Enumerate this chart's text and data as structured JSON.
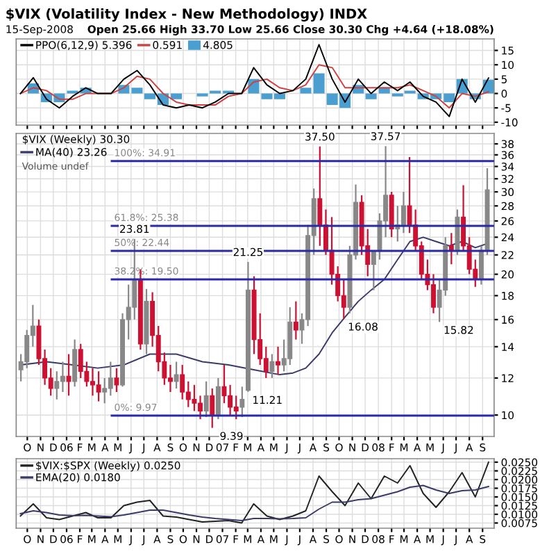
{
  "chart_data": [
    {
      "type": "line",
      "title": "$VIX (Volatility Index - New Methodology) INDX",
      "annotations": [
        "15-Sep-2008",
        "Open 25.66 High 33.70 Low 25.66 Close 30.30 Chg +4.64 (+18.08%)"
      ],
      "x": [
        "2005-09-15",
        "2005-10-15",
        "2005-11-15",
        "2005-12-15",
        "2006-01-15",
        "2006-02-15",
        "2006-03-15",
        "2006-04-15",
        "2006-05-15",
        "2006-06-15",
        "2006-07-15",
        "2006-08-15",
        "2006-09-15",
        "2006-10-15",
        "2006-11-15",
        "2006-12-15",
        "2007-01-15",
        "2007-02-15",
        "2007-03-15",
        "2007-04-15",
        "2007-05-15",
        "2007-06-15",
        "2007-07-15",
        "2007-08-15",
        "2007-09-15",
        "2007-10-15",
        "2007-11-15",
        "2007-12-15",
        "2008-01-15",
        "2008-02-15",
        "2008-03-15",
        "2008-04-15",
        "2008-05-15",
        "2008-06-15",
        "2008-07-15",
        "2008-08-15",
        "2008-09-15"
      ],
      "series": [
        {
          "name": "4.805",
          "type": "bar",
          "color": "#4a9fd0",
          "values": [
            0,
            3.5,
            -3,
            -3,
            1,
            2,
            0,
            0,
            3,
            2,
            -2,
            -4,
            -2,
            0,
            -1,
            1,
            1,
            0,
            5,
            -2,
            -2,
            0,
            2,
            7,
            -4,
            -5,
            3,
            -2,
            2,
            -1,
            1,
            -2,
            -2,
            -3,
            5,
            -2,
            4.8
          ]
        },
        {
          "name": "0.591",
          "type": "line",
          "color": "#d04040",
          "values": [
            0,
            2,
            1,
            -2,
            -2,
            0,
            0,
            0,
            2,
            6,
            5,
            0,
            -3,
            -4,
            -4,
            -4,
            -1,
            0,
            4,
            5,
            2,
            1,
            3,
            10,
            9,
            2,
            2,
            2,
            2,
            2,
            3,
            1,
            -1,
            -5,
            0,
            -1,
            0.6
          ]
        },
        {
          "name": "PPO(6,12,9) 5.396",
          "type": "line",
          "color": "#000000",
          "values": [
            0,
            5.5,
            -2,
            -5,
            -1,
            2,
            0,
            0,
            5,
            8,
            3,
            -4,
            -5,
            -4,
            -5,
            -3,
            0,
            0,
            9,
            3,
            0,
            1,
            5,
            17,
            5,
            -3,
            5,
            0,
            4,
            1,
            4,
            -1,
            -3,
            -8,
            5,
            -3,
            5.4
          ]
        }
      ],
      "xlim": [
        "2005-09-05",
        "2008-09-28"
      ],
      "xticks": [
        {
          "value": "2005-10-01",
          "label": null
        },
        {
          "value": "2005-11-01",
          "label": null
        },
        {
          "value": "2005-12-01",
          "label": null
        },
        {
          "value": "2006-01-01",
          "label": null
        },
        {
          "value": "2006-02-01",
          "label": null
        },
        {
          "value": "2006-03-01",
          "label": null
        },
        {
          "value": "2006-04-01",
          "label": null
        },
        {
          "value": "2006-05-01",
          "label": null
        },
        {
          "value": "2006-06-01",
          "label": null
        },
        {
          "value": "2006-07-01",
          "label": null
        },
        {
          "value": "2006-08-01",
          "label": null
        },
        {
          "value": "2006-09-01",
          "label": null
        },
        {
          "value": "2006-10-01",
          "label": null
        },
        {
          "value": "2006-11-01",
          "label": null
        },
        {
          "value": "2006-12-01",
          "label": null
        },
        {
          "value": "2007-01-01",
          "label": null
        },
        {
          "value": "2007-02-01",
          "label": null
        },
        {
          "value": "2007-03-01",
          "label": null
        },
        {
          "value": "2007-04-01",
          "label": null
        },
        {
          "value": "2007-05-01",
          "label": null
        },
        {
          "value": "2007-06-01",
          "label": null
        },
        {
          "value": "2007-07-01",
          "label": null
        },
        {
          "value": "2007-08-01",
          "label": null
        },
        {
          "value": "2007-09-01",
          "label": null
        },
        {
          "value": "2007-10-01",
          "label": null
        },
        {
          "value": "2007-11-01",
          "label": null
        },
        {
          "value": "2007-12-01",
          "label": null
        },
        {
          "value": "2008-01-01",
          "label": null
        },
        {
          "value": "2008-02-01",
          "label": null
        },
        {
          "value": "2008-03-01",
          "label": null
        },
        {
          "value": "2008-04-01",
          "label": null
        },
        {
          "value": "2008-05-01",
          "label": null
        },
        {
          "value": "2008-06-01",
          "label": null
        },
        {
          "value": "2008-07-01",
          "label": null
        },
        {
          "value": "2008-08-01",
          "label": null
        },
        {
          "value": "2008-09-01",
          "label": null
        }
      ],
      "ylim": [
        -11,
        19
      ],
      "yticks": [
        -10,
        -5,
        0,
        5,
        10,
        15
      ],
      "grid": true,
      "legend": "top left",
      "tick_labels": "y"
    },
    {
      "type": "candlestick",
      "title": "$VIX (Weekly) 30.30",
      "log": true,
      "annotations": [
        "Volume undef",
        {
          "text": "23.81",
          "x": "2006-06-09",
          "y": 23.81
        },
        {
          "text": "21.25",
          "x": "2007-03-02",
          "y": 21.25
        },
        {
          "text": "11.21",
          "x": "2007-03-02",
          "y": 11.21
        },
        {
          "text": "9.39",
          "x": "2006-12-08",
          "y": 9.39
        },
        {
          "text": "37.50",
          "x": "2007-08-17",
          "y": 37.5
        },
        {
          "text": "16.08",
          "x": "2007-10-12",
          "y": 16.08
        },
        {
          "text": "37.57",
          "x": "2008-01-18",
          "y": 37.57
        },
        {
          "text": "15.82",
          "x": "2008-05-23",
          "y": 15.82
        }
      ],
      "x": [
        "2005-09-16",
        "2005-09-30",
        "2005-10-14",
        "2005-10-28",
        "2005-11-11",
        "2005-11-25",
        "2005-12-09",
        "2005-12-23",
        "2006-01-06",
        "2006-01-20",
        "2006-02-03",
        "2006-02-17",
        "2006-03-03",
        "2006-03-17",
        "2006-03-31",
        "2006-04-14",
        "2006-04-28",
        "2006-05-12",
        "2006-05-26",
        "2006-06-09",
        "2006-06-23",
        "2006-07-07",
        "2006-07-21",
        "2006-08-04",
        "2006-08-18",
        "2006-09-01",
        "2006-09-15",
        "2006-09-29",
        "2006-10-13",
        "2006-10-27",
        "2006-11-10",
        "2006-11-24",
        "2006-12-08",
        "2006-12-22",
        "2007-01-05",
        "2007-01-19",
        "2007-02-02",
        "2007-02-16",
        "2007-03-02",
        "2007-03-16",
        "2007-03-30",
        "2007-04-13",
        "2007-04-27",
        "2007-05-11",
        "2007-05-25",
        "2007-06-08",
        "2007-06-22",
        "2007-07-06",
        "2007-07-20",
        "2007-08-03",
        "2007-08-17",
        "2007-08-31",
        "2007-09-14",
        "2007-09-28",
        "2007-10-12",
        "2007-10-26",
        "2007-11-09",
        "2007-11-23",
        "2007-12-07",
        "2007-12-21",
        "2008-01-04",
        "2008-01-18",
        "2008-02-01",
        "2008-02-15",
        "2008-02-29",
        "2008-03-14",
        "2008-03-28",
        "2008-04-11",
        "2008-04-25",
        "2008-05-09",
        "2008-05-23",
        "2008-06-06",
        "2008-06-20",
        "2008-07-04",
        "2008-07-18",
        "2008-08-01",
        "2008-08-15",
        "2008-08-29",
        "2008-09-12"
      ],
      "ohlc": [
        [
          12.5,
          13.5,
          11.8,
          13.0
        ],
        [
          13.0,
          15.2,
          12.6,
          14.8
        ],
        [
          14.8,
          17.2,
          14.0,
          15.5
        ],
        [
          15.5,
          16.0,
          12.8,
          13.2
        ],
        [
          13.2,
          13.8,
          11.6,
          12.0
        ],
        [
          12.0,
          12.6,
          11.0,
          11.4
        ],
        [
          11.4,
          12.4,
          10.8,
          11.8
        ],
        [
          11.8,
          13.0,
          11.2,
          12.1
        ],
        [
          12.1,
          13.5,
          11.0,
          11.8
        ],
        [
          11.8,
          14.5,
          11.5,
          13.8
        ],
        [
          13.8,
          14.2,
          12.0,
          12.4
        ],
        [
          12.4,
          13.0,
          11.5,
          11.8
        ],
        [
          11.8,
          12.6,
          11.0,
          11.6
        ],
        [
          11.6,
          12.4,
          10.7,
          11.2
        ],
        [
          11.2,
          12.0,
          10.6,
          11.4
        ],
        [
          11.4,
          13.0,
          11.0,
          12.0
        ],
        [
          12.0,
          12.6,
          11.2,
          11.6
        ],
        [
          11.6,
          16.5,
          11.5,
          16.0
        ],
        [
          16.0,
          19.0,
          14.5,
          17.0
        ],
        [
          17.0,
          23.81,
          16.0,
          19.5
        ],
        [
          19.5,
          20.5,
          13.8,
          14.2
        ],
        [
          14.2,
          18.6,
          13.5,
          17.5
        ],
        [
          17.5,
          18.3,
          14.0,
          14.8
        ],
        [
          14.8,
          15.5,
          12.4,
          13.0
        ],
        [
          13.0,
          13.6,
          11.6,
          12.0
        ],
        [
          12.0,
          12.8,
          11.2,
          11.8
        ],
        [
          11.8,
          13.0,
          11.4,
          12.2
        ],
        [
          12.2,
          12.8,
          10.8,
          11.2
        ],
        [
          11.2,
          11.8,
          10.4,
          10.8
        ],
        [
          10.8,
          11.6,
          10.2,
          10.6
        ],
        [
          10.6,
          11.0,
          9.8,
          10.2
        ],
        [
          10.2,
          11.8,
          9.9,
          11.0
        ],
        [
          11.0,
          11.4,
          9.39,
          10.0
        ],
        [
          10.0,
          12.0,
          9.8,
          11.5
        ],
        [
          11.5,
          12.8,
          10.6,
          11.0
        ],
        [
          11.0,
          11.6,
          10.0,
          10.4
        ],
        [
          10.4,
          11.0,
          9.8,
          10.2
        ],
        [
          10.4,
          11.5,
          9.9,
          10.8
        ],
        [
          11.3,
          21.25,
          11.21,
          18.5
        ],
        [
          18.5,
          19.8,
          13.5,
          14.5
        ],
        [
          14.5,
          16.5,
          12.8,
          13.2
        ],
        [
          13.2,
          14.0,
          12.0,
          12.4
        ],
        [
          12.4,
          13.5,
          12.0,
          13.0
        ],
        [
          13.0,
          14.0,
          12.2,
          12.8
        ],
        [
          12.8,
          14.5,
          12.4,
          13.2
        ],
        [
          13.2,
          17.0,
          12.8,
          15.8
        ],
        [
          15.8,
          17.5,
          14.5,
          15.2
        ],
        [
          15.2,
          16.5,
          14.2,
          16.0
        ],
        [
          16.0,
          25.5,
          15.5,
          24.2
        ],
        [
          24.2,
          30.5,
          22.0,
          29.0
        ],
        [
          29.0,
          37.5,
          23.0,
          25.5
        ],
        [
          25.5,
          27.5,
          22.0,
          22.5
        ],
        [
          22.5,
          26.5,
          19.0,
          20.0
        ],
        [
          20.0,
          20.8,
          17.5,
          18.0
        ],
        [
          18.0,
          19.5,
          16.08,
          17.0
        ],
        [
          17.0,
          23.0,
          16.5,
          22.0
        ],
        [
          22.0,
          31.1,
          21.5,
          28.5
        ],
        [
          28.5,
          29.5,
          22.0,
          23.0
        ],
        [
          23.0,
          25.0,
          19.8,
          21.0
        ],
        [
          21.0,
          22.5,
          18.5,
          22.4
        ],
        [
          22.4,
          27.0,
          21.5,
          26.0
        ],
        [
          26.0,
          37.57,
          24.0,
          29.5
        ],
        [
          29.5,
          30.0,
          24.0,
          25.0
        ],
        [
          25.0,
          28.0,
          23.5,
          25.5
        ],
        [
          25.5,
          30.0,
          24.5,
          28.0
        ],
        [
          28.0,
          35.6,
          24.5,
          25.5
        ],
        [
          25.5,
          27.5,
          22.5,
          23.0
        ],
        [
          23.0,
          23.5,
          19.5,
          20.0
        ],
        [
          20.0,
          21.5,
          18.5,
          19.0
        ],
        [
          19.0,
          20.0,
          16.5,
          17.0
        ],
        [
          17.0,
          19.5,
          15.82,
          18.5
        ],
        [
          18.5,
          24.0,
          18.0,
          23.0
        ],
        [
          23.0,
          24.5,
          21.0,
          22.5
        ],
        [
          22.5,
          27.5,
          22.0,
          26.5
        ],
        [
          26.5,
          31.0,
          22.5,
          23.0
        ],
        [
          23.0,
          24.0,
          20.0,
          20.5
        ],
        [
          20.5,
          21.5,
          18.8,
          19.5
        ],
        [
          19.5,
          23.0,
          19.0,
          22.5
        ],
        [
          22.5,
          33.7,
          22.0,
          30.3
        ]
      ],
      "colors": [
        "#888888",
        "#888888",
        "#888888",
        "#cc1133",
        "#cc1133",
        "#cc1133",
        "#888888",
        "#888888",
        "#cc1133",
        "#888888",
        "#cc1133",
        "#cc1133",
        "#cc1133",
        "#cc1133",
        "#888888",
        "#888888",
        "#cc1133",
        "#888888",
        "#888888",
        "#888888",
        "#cc1133",
        "#888888",
        "#cc1133",
        "#cc1133",
        "#cc1133",
        "#cc1133",
        "#888888",
        "#cc1133",
        "#cc1133",
        "#cc1133",
        "#cc1133",
        "#888888",
        "#cc1133",
        "#888888",
        "#cc1133",
        "#cc1133",
        "#cc1133",
        "#888888",
        "#888888",
        "#cc1133",
        "#cc1133",
        "#cc1133",
        "#888888",
        "#cc1133",
        "#888888",
        "#888888",
        "#cc1133",
        "#888888",
        "#888888",
        "#888888",
        "#cc1133",
        "#cc1133",
        "#cc1133",
        "#cc1133",
        "#cc1133",
        "#888888",
        "#888888",
        "#cc1133",
        "#cc1133",
        "#888888",
        "#888888",
        "#888888",
        "#cc1133",
        "#888888",
        "#888888",
        "#cc1133",
        "#cc1133",
        "#cc1133",
        "#cc1133",
        "#cc1133",
        "#888888",
        "#888888",
        "#cc1133",
        "#888888",
        "#cc1133",
        "#cc1133",
        "#cc1133",
        "#888888",
        "#888888"
      ],
      "series": [
        {
          "name": "MA(40) 23.26",
          "type": "line",
          "color": "#3a3a6a",
          "x": [
            "2005-09-15",
            "2005-11-15",
            "2006-01-15",
            "2006-03-15",
            "2006-05-15",
            "2006-07-15",
            "2006-09-15",
            "2006-11-15",
            "2007-01-15",
            "2007-03-15",
            "2007-05-15",
            "2007-06-15",
            "2007-07-15",
            "2007-08-15",
            "2007-09-15",
            "2007-10-15",
            "2007-11-15",
            "2007-12-15",
            "2008-01-15",
            "2008-02-15",
            "2008-03-15",
            "2008-04-15",
            "2008-05-15",
            "2008-06-15",
            "2008-07-15",
            "2008-08-15",
            "2008-09-12"
          ],
          "values": [
            12.8,
            13.0,
            12.8,
            12.6,
            12.8,
            13.5,
            13.5,
            13.0,
            12.8,
            12.5,
            12.2,
            12.3,
            12.6,
            13.5,
            15.0,
            16.2,
            17.5,
            18.5,
            19.5,
            21.5,
            23.5,
            24.0,
            23.5,
            23.0,
            23.5,
            22.8,
            23.26
          ]
        }
      ],
      "ref_lines": [
        {
          "axis": "y",
          "value": 34.91,
          "label": "100%: 34.91",
          "color": "#2a2aa8"
        },
        {
          "axis": "y",
          "value": 25.38,
          "label": "61.8%: 25.38",
          "color": "#2a2aa8"
        },
        {
          "axis": "y",
          "value": 22.44,
          "label": "50%: 22.44",
          "color": "#2a2aa8"
        },
        {
          "axis": "y",
          "value": 19.5,
          "label": "38.2%: 19.50",
          "color": "#2a2aa8"
        },
        {
          "axis": "y",
          "value": 9.97,
          "label": "0%: 9.97",
          "color": "#2a2aa8"
        }
      ],
      "xlim": [
        "2005-09-05",
        "2008-09-28"
      ],
      "xticks": [
        {
          "value": "2005-10-01",
          "label": "O"
        },
        {
          "value": "2005-11-01",
          "label": "N"
        },
        {
          "value": "2005-12-01",
          "label": "D"
        },
        {
          "value": "2006-01-01",
          "label": "06"
        },
        {
          "value": "2006-02-01",
          "label": "F"
        },
        {
          "value": "2006-03-01",
          "label": "M"
        },
        {
          "value": "2006-04-01",
          "label": "A"
        },
        {
          "value": "2006-05-01",
          "label": "M"
        },
        {
          "value": "2006-06-01",
          "label": "J"
        },
        {
          "value": "2006-07-01",
          "label": "J"
        },
        {
          "value": "2006-08-01",
          "label": "A"
        },
        {
          "value": "2006-09-01",
          "label": "S"
        },
        {
          "value": "2006-10-01",
          "label": "O"
        },
        {
          "value": "2006-11-01",
          "label": "N"
        },
        {
          "value": "2006-12-01",
          "label": "D"
        },
        {
          "value": "2007-01-01",
          "label": "07"
        },
        {
          "value": "2007-02-01",
          "label": "F"
        },
        {
          "value": "2007-03-01",
          "label": "M"
        },
        {
          "value": "2007-04-01",
          "label": "A"
        },
        {
          "value": "2007-05-01",
          "label": "M"
        },
        {
          "value": "2007-06-01",
          "label": "J"
        },
        {
          "value": "2007-07-01",
          "label": "J"
        },
        {
          "value": "2007-08-01",
          "label": "A"
        },
        {
          "value": "2007-09-01",
          "label": "S"
        },
        {
          "value": "2007-10-01",
          "label": "O"
        },
        {
          "value": "2007-11-01",
          "label": "N"
        },
        {
          "value": "2007-12-01",
          "label": "D"
        },
        {
          "value": "2008-01-01",
          "label": "08"
        },
        {
          "value": "2008-02-01",
          "label": "F"
        },
        {
          "value": "2008-03-01",
          "label": "M"
        },
        {
          "value": "2008-04-01",
          "label": "A"
        },
        {
          "value": "2008-05-01",
          "label": "M"
        },
        {
          "value": "2008-06-01",
          "label": "J"
        },
        {
          "value": "2008-07-01",
          "label": "J"
        },
        {
          "value": "2008-08-01",
          "label": "A"
        },
        {
          "value": "2008-09-01",
          "label": "S"
        }
      ],
      "ylim": [
        9,
        40
      ],
      "yticks": [
        10,
        12,
        14,
        16,
        18,
        20,
        22,
        24,
        26,
        28,
        30,
        32,
        34,
        36,
        38
      ],
      "grid": true,
      "legend": "top left"
    },
    {
      "type": "line",
      "x": [
        "2005-09-15",
        "2005-10-15",
        "2005-11-15",
        "2005-12-15",
        "2006-01-15",
        "2006-02-15",
        "2006-03-15",
        "2006-04-15",
        "2006-05-15",
        "2006-06-15",
        "2006-07-15",
        "2006-08-15",
        "2006-09-15",
        "2006-10-15",
        "2006-11-15",
        "2006-12-15",
        "2007-01-15",
        "2007-02-15",
        "2007-03-15",
        "2007-04-15",
        "2007-05-15",
        "2007-06-15",
        "2007-07-15",
        "2007-08-15",
        "2007-09-15",
        "2007-10-15",
        "2007-11-15",
        "2007-12-15",
        "2008-01-15",
        "2008-02-15",
        "2008-03-15",
        "2008-04-15",
        "2008-05-15",
        "2008-06-15",
        "2008-07-15",
        "2008-08-15",
        "2008-09-15"
      ],
      "series": [
        {
          "name": "$VIX:$SPX (Weekly) 0.0250",
          "color": "#222222",
          "values": [
            0.0095,
            0.013,
            0.009,
            0.0085,
            0.0095,
            0.0105,
            0.009,
            0.009,
            0.0125,
            0.0135,
            0.014,
            0.0095,
            0.0092,
            0.0085,
            0.0078,
            0.008,
            0.0082,
            0.0075,
            0.013,
            0.0095,
            0.0085,
            0.0095,
            0.011,
            0.021,
            0.0165,
            0.0125,
            0.019,
            0.0145,
            0.021,
            0.019,
            0.024,
            0.016,
            0.012,
            0.0165,
            0.022,
            0.015,
            0.025
          ]
        },
        {
          "name": "EMA(20) 0.0180",
          "color": "#3a3a6a",
          "values": [
            0.0102,
            0.011,
            0.0105,
            0.0098,
            0.0096,
            0.0097,
            0.0095,
            0.0093,
            0.0098,
            0.0105,
            0.0112,
            0.0112,
            0.0105,
            0.0098,
            0.0092,
            0.0088,
            0.0085,
            0.0082,
            0.0088,
            0.0088,
            0.0087,
            0.0088,
            0.009,
            0.0115,
            0.0135,
            0.0135,
            0.0142,
            0.0145,
            0.0155,
            0.0165,
            0.0178,
            0.0183,
            0.017,
            0.016,
            0.0168,
            0.017,
            0.018
          ]
        }
      ],
      "xlim": [
        "2005-09-05",
        "2008-09-28"
      ],
      "xticks": [
        {
          "value": "2005-10-01",
          "label": "O"
        },
        {
          "value": "2005-11-01",
          "label": "N"
        },
        {
          "value": "2005-12-01",
          "label": "D"
        },
        {
          "value": "2006-01-01",
          "label": "06"
        },
        {
          "value": "2006-02-01",
          "label": "F"
        },
        {
          "value": "2006-03-01",
          "label": "M"
        },
        {
          "value": "2006-04-01",
          "label": "A"
        },
        {
          "value": "2006-05-01",
          "label": "M"
        },
        {
          "value": "2006-06-01",
          "label": "J"
        },
        {
          "value": "2006-07-01",
          "label": "J"
        },
        {
          "value": "2006-08-01",
          "label": "A"
        },
        {
          "value": "2006-09-01",
          "label": "S"
        },
        {
          "value": "2006-10-01",
          "label": "O"
        },
        {
          "value": "2006-11-01",
          "label": "N"
        },
        {
          "value": "2006-12-01",
          "label": "D"
        },
        {
          "value": "2007-01-01",
          "label": "07"
        },
        {
          "value": "2007-02-01",
          "label": "F"
        },
        {
          "value": "2007-03-01",
          "label": "M"
        },
        {
          "value": "2007-04-01",
          "label": "A"
        },
        {
          "value": "2007-05-01",
          "label": "M"
        },
        {
          "value": "2007-06-01",
          "label": "J"
        },
        {
          "value": "2007-07-01",
          "label": "J"
        },
        {
          "value": "2007-08-01",
          "label": "A"
        },
        {
          "value": "2007-09-01",
          "label": "S"
        },
        {
          "value": "2007-10-01",
          "label": "O"
        },
        {
          "value": "2007-11-01",
          "label": "N"
        },
        {
          "value": "2007-12-01",
          "label": "D"
        },
        {
          "value": "2008-01-01",
          "label": "08"
        },
        {
          "value": "2008-02-01",
          "label": "F"
        },
        {
          "value": "2008-03-01",
          "label": "M"
        },
        {
          "value": "2008-04-01",
          "label": "A"
        },
        {
          "value": "2008-05-01",
          "label": "M"
        },
        {
          "value": "2008-06-01",
          "label": "J"
        },
        {
          "value": "2008-07-01",
          "label": "J"
        },
        {
          "value": "2008-08-01",
          "label": "A"
        },
        {
          "value": "2008-09-01",
          "label": "S"
        }
      ],
      "ylim": [
        0.006,
        0.026
      ],
      "yticks": [
        {
          "value": 0.0075,
          "label": "0.0075"
        },
        {
          "value": 0.01,
          "label": "0.0100"
        },
        {
          "value": 0.0125,
          "label": "0.0125"
        },
        {
          "value": 0.015,
          "label": "0.0150"
        },
        {
          "value": 0.0175,
          "label": "0.0175"
        },
        {
          "value": 0.02,
          "label": "0.0200"
        },
        {
          "value": 0.0225,
          "label": "0.0225"
        },
        {
          "value": 0.025,
          "label": "0.0250"
        }
      ],
      "grid": true,
      "legend": "top left"
    }
  ]
}
